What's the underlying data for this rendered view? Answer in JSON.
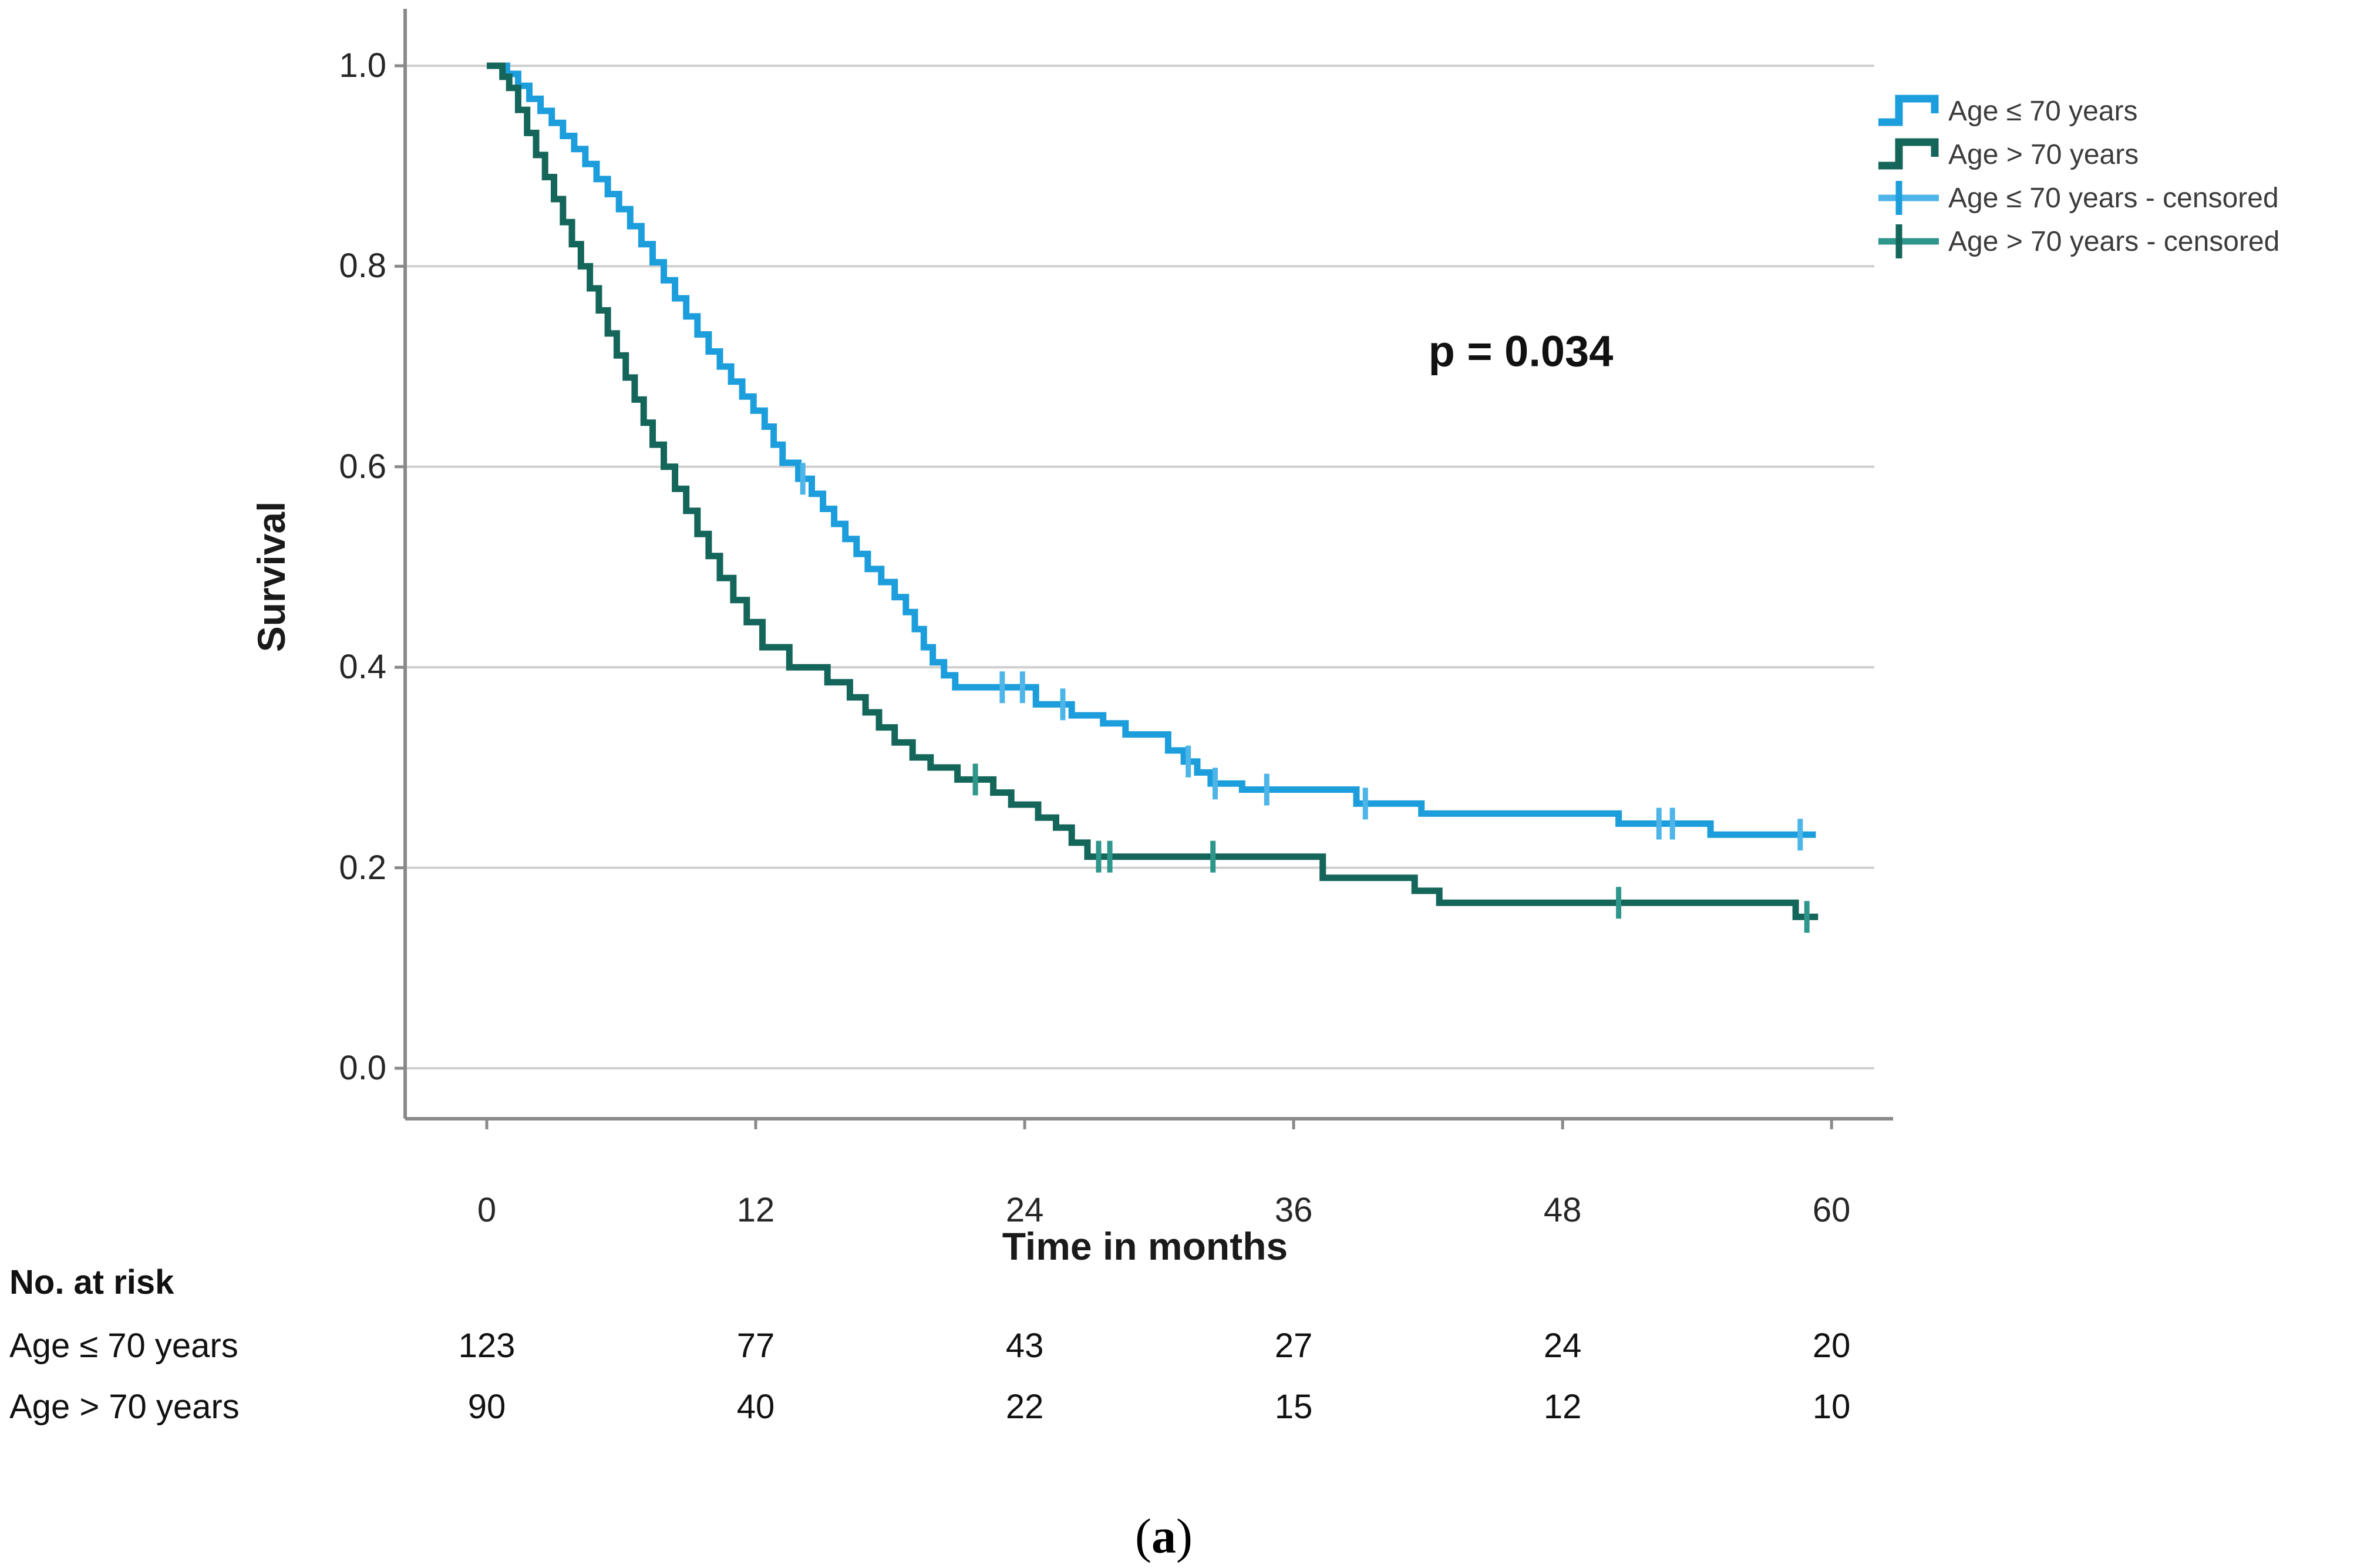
{
  "figure": {
    "ylabel": "Survival",
    "xlabel": "Time in months",
    "p_value": "p = 0.034",
    "caption_open": "(",
    "caption_letter": "a",
    "caption_close": ")"
  },
  "legend": {
    "position": "top-right",
    "items": [
      {
        "label": "Age ≤ 70 years",
        "type": "step-line",
        "series": 0
      },
      {
        "label": "Age > 70 years",
        "type": "step-line",
        "series": 1
      },
      {
        "label": "Age ≤ 70 years - censored",
        "type": "censor-plus",
        "series": 0
      },
      {
        "label": "Age > 70 years - censored",
        "type": "censor-plus",
        "series": 1
      }
    ]
  },
  "risk_table": {
    "title": "No. at risk",
    "time_points": [
      0,
      12,
      24,
      36,
      48,
      60
    ],
    "rows": [
      {
        "label": "Age ≤ 70 years",
        "values": [
          "123",
          "77",
          "43",
          "27",
          "24",
          "20"
        ]
      },
      {
        "label": "Age > 70 years",
        "values": [
          "90",
          "40",
          "22",
          "15",
          "12",
          "10"
        ]
      }
    ]
  },
  "chart_data": {
    "type": "line",
    "subtype": "kaplan-meier-step",
    "title": "",
    "xlabel": "Time in months",
    "ylabel": "Survival",
    "xlim": [
      0,
      63
    ],
    "ylim": [
      0,
      1.0
    ],
    "xticks": [
      0,
      12,
      24,
      36,
      48,
      60
    ],
    "xtick_labels": [
      "0",
      "12",
      "24",
      "36",
      "48",
      "60"
    ],
    "ytick_values": [
      0.0,
      0.2,
      0.4,
      0.6,
      0.8,
      1.0
    ],
    "ytick_labels": [
      "0.0",
      "0.2",
      "0.4",
      "0.6",
      "0.8",
      "1.0"
    ],
    "grid": true,
    "legend_position": "top-right",
    "annotation": {
      "text": "p = 0.034",
      "x": 46,
      "y": 0.715
    },
    "axis_color": "#8a8a8a",
    "grid_color": "#cfcfcf",
    "series": [
      {
        "name": "Age ≤ 70 years",
        "color": "#1c9ddc",
        "censor_color": "#4db5e8",
        "n_start": 123,
        "end_t": 59.3,
        "steps": [
          [
            0,
            1.0
          ],
          [
            0.9,
            0.992
          ],
          [
            1.4,
            0.98
          ],
          [
            1.9,
            0.967
          ],
          [
            2.4,
            0.955
          ],
          [
            2.9,
            0.943
          ],
          [
            3.4,
            0.93
          ],
          [
            3.9,
            0.917
          ],
          [
            4.4,
            0.902
          ],
          [
            4.9,
            0.887
          ],
          [
            5.4,
            0.872
          ],
          [
            5.9,
            0.857
          ],
          [
            6.4,
            0.84
          ],
          [
            6.9,
            0.822
          ],
          [
            7.4,
            0.804
          ],
          [
            7.9,
            0.786
          ],
          [
            8.4,
            0.768
          ],
          [
            8.9,
            0.75
          ],
          [
            9.4,
            0.732
          ],
          [
            9.9,
            0.715
          ],
          [
            10.4,
            0.7
          ],
          [
            10.9,
            0.685
          ],
          [
            11.4,
            0.67
          ],
          [
            11.9,
            0.656
          ],
          [
            12.4,
            0.64
          ],
          [
            12.8,
            0.622
          ],
          [
            13.2,
            0.604
          ],
          [
            13.9,
            0.588
          ],
          [
            14.5,
            0.573
          ],
          [
            15.0,
            0.558
          ],
          [
            15.5,
            0.543
          ],
          [
            16.0,
            0.528
          ],
          [
            16.5,
            0.513
          ],
          [
            17.0,
            0.498
          ],
          [
            17.6,
            0.485
          ],
          [
            18.2,
            0.47
          ],
          [
            18.7,
            0.455
          ],
          [
            19.1,
            0.438
          ],
          [
            19.5,
            0.42
          ],
          [
            19.9,
            0.405
          ],
          [
            20.4,
            0.392
          ],
          [
            20.9,
            0.38
          ],
          [
            24.5,
            0.363
          ],
          [
            26.1,
            0.352
          ],
          [
            27.5,
            0.344
          ],
          [
            28.5,
            0.333
          ],
          [
            30.4,
            0.317
          ],
          [
            31.1,
            0.306
          ],
          [
            31.7,
            0.295
          ],
          [
            32.3,
            0.284
          ],
          [
            33.7,
            0.278
          ],
          [
            38.8,
            0.264
          ],
          [
            41.7,
            0.254
          ],
          [
            50.5,
            0.244
          ],
          [
            54.6,
            0.233
          ]
        ],
        "censored": [
          [
            14.1,
            0.588
          ],
          [
            23.0,
            0.38
          ],
          [
            23.9,
            0.38
          ],
          [
            25.7,
            0.363
          ],
          [
            31.3,
            0.306
          ],
          [
            32.5,
            0.284
          ],
          [
            34.8,
            0.278
          ],
          [
            39.2,
            0.264
          ],
          [
            52.3,
            0.244
          ],
          [
            52.9,
            0.244
          ],
          [
            58.6,
            0.233
          ]
        ]
      },
      {
        "name": "Age > 70 years",
        "color": "#14655a",
        "censor_color": "#2f968b",
        "n_start": 90,
        "end_t": 59.4,
        "steps": [
          [
            0,
            1.0
          ],
          [
            0.7,
            0.989
          ],
          [
            1.0,
            0.978
          ],
          [
            1.4,
            0.956
          ],
          [
            1.8,
            0.933
          ],
          [
            2.2,
            0.911
          ],
          [
            2.6,
            0.889
          ],
          [
            3.0,
            0.867
          ],
          [
            3.4,
            0.844
          ],
          [
            3.8,
            0.822
          ],
          [
            4.2,
            0.8
          ],
          [
            4.6,
            0.778
          ],
          [
            5.0,
            0.756
          ],
          [
            5.4,
            0.733
          ],
          [
            5.8,
            0.711
          ],
          [
            6.2,
            0.689
          ],
          [
            6.6,
            0.667
          ],
          [
            7.0,
            0.644
          ],
          [
            7.4,
            0.622
          ],
          [
            7.9,
            0.6
          ],
          [
            8.4,
            0.578
          ],
          [
            8.9,
            0.556
          ],
          [
            9.4,
            0.533
          ],
          [
            9.9,
            0.511
          ],
          [
            10.4,
            0.489
          ],
          [
            11.0,
            0.467
          ],
          [
            11.6,
            0.445
          ],
          [
            12.3,
            0.42
          ],
          [
            13.5,
            0.4
          ],
          [
            15.2,
            0.385
          ],
          [
            16.2,
            0.37
          ],
          [
            16.9,
            0.355
          ],
          [
            17.5,
            0.34
          ],
          [
            18.2,
            0.325
          ],
          [
            19.0,
            0.31
          ],
          [
            19.8,
            0.3
          ],
          [
            21.0,
            0.288
          ],
          [
            22.6,
            0.275
          ],
          [
            23.4,
            0.263
          ],
          [
            24.6,
            0.25
          ],
          [
            25.4,
            0.24
          ],
          [
            26.1,
            0.225
          ],
          [
            26.8,
            0.211
          ],
          [
            37.3,
            0.19
          ],
          [
            41.4,
            0.177
          ],
          [
            42.5,
            0.165
          ],
          [
            58.4,
            0.151
          ]
        ],
        "censored": [
          [
            21.8,
            0.288
          ],
          [
            27.3,
            0.211
          ],
          [
            27.8,
            0.211
          ],
          [
            32.4,
            0.211
          ],
          [
            50.5,
            0.165
          ],
          [
            58.9,
            0.151
          ]
        ]
      }
    ]
  }
}
